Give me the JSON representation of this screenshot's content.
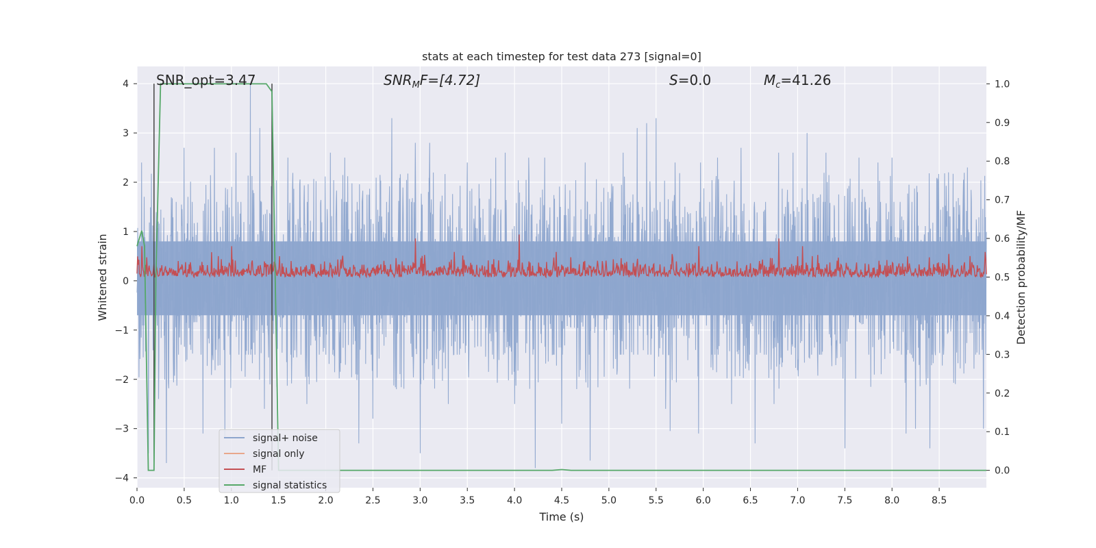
{
  "chart_data": {
    "type": "line",
    "title": "stats at each timestep for test data 273 [signal=0]",
    "xlabel": "Time (s)",
    "ylabel_left": "Whitened strain",
    "ylabel_right": "Detection probability/MF",
    "xlim": [
      0.0,
      9.0
    ],
    "ylim_left": [
      -4.2,
      4.35
    ],
    "ylim_right": [
      -0.045,
      1.045
    ],
    "xticks": [
      "0.0",
      "0.5",
      "1.0",
      "1.5",
      "2.0",
      "2.5",
      "3.0",
      "3.5",
      "4.0",
      "4.5",
      "5.0",
      "5.5",
      "6.0",
      "6.5",
      "7.0",
      "7.5",
      "8.0",
      "8.5"
    ],
    "yticks_left": [
      "−4",
      "−3",
      "−2",
      "−1",
      "0",
      "1",
      "2",
      "3",
      "4"
    ],
    "yticks_right": [
      "0.0",
      "0.1",
      "0.2",
      "0.3",
      "0.4",
      "0.5",
      "0.6",
      "0.7",
      "0.8",
      "0.9",
      "1.0"
    ],
    "grid": true,
    "legend_position": "lower-left",
    "annotations": {
      "snr_opt": "SNR_opt=3.47",
      "snr_mf_main": "SNR",
      "snr_mf_sub": "M",
      "snr_mf_rest": "F=[4.72]",
      "s_main": "S",
      "s_rest": "=0.0",
      "mc_main": "M",
      "mc_sub": "c",
      "mc_rest": "=41.26"
    },
    "vertical_lines_x": [
      0.18,
      1.43
    ],
    "series": [
      {
        "name": "signal+ noise",
        "color": "#8da5cd",
        "axis": "left",
        "description_values": {
          "typical_envelope": [
            -1.5,
            1.6
          ],
          "extreme_max": 4.0,
          "extreme_min": -3.85
        },
        "spikes": [
          [
            0.05,
            2.4
          ],
          [
            0.12,
            -3.5
          ],
          [
            0.23,
            -2.4
          ],
          [
            0.31,
            -3.7
          ],
          [
            0.5,
            2.7
          ],
          [
            0.7,
            -3.1
          ],
          [
            0.82,
            2.7
          ],
          [
            0.93,
            -3.2
          ],
          [
            1.05,
            2.6
          ],
          [
            1.2,
            4.0
          ],
          [
            1.3,
            3.1
          ],
          [
            1.35,
            -2.6
          ],
          [
            1.6,
            2.5
          ],
          [
            1.8,
            -2.5
          ],
          [
            2.05,
            2.6
          ],
          [
            2.2,
            2.5
          ],
          [
            2.35,
            -3.3
          ],
          [
            2.5,
            -2.8
          ],
          [
            2.7,
            3.3
          ],
          [
            2.75,
            -2.2
          ],
          [
            2.95,
            2.8
          ],
          [
            3.0,
            -3.5
          ],
          [
            3.1,
            2.8
          ],
          [
            3.3,
            -2.5
          ],
          [
            3.5,
            2.4
          ],
          [
            3.8,
            2.5
          ],
          [
            3.9,
            2.6
          ],
          [
            4.0,
            -2.5
          ],
          [
            4.15,
            2.5
          ],
          [
            4.22,
            -3.8
          ],
          [
            4.32,
            2.5
          ],
          [
            4.5,
            -2.9
          ],
          [
            4.75,
            2.4
          ],
          [
            4.8,
            -3.65
          ],
          [
            5.15,
            2.6
          ],
          [
            5.3,
            3.1
          ],
          [
            5.4,
            3.2
          ],
          [
            5.5,
            3.3
          ],
          [
            5.6,
            -2.6
          ],
          [
            5.65,
            -3.05
          ],
          [
            5.7,
            2.4
          ],
          [
            5.95,
            -3.1
          ],
          [
            5.97,
            2.4
          ],
          [
            6.15,
            2.5
          ],
          [
            6.3,
            -2.5
          ],
          [
            6.4,
            2.7
          ],
          [
            6.55,
            -3.3
          ],
          [
            6.75,
            -2.5
          ],
          [
            6.8,
            2.6
          ],
          [
            6.95,
            2.6
          ],
          [
            7.1,
            3.0
          ],
          [
            7.3,
            2.6
          ],
          [
            7.5,
            -3.4
          ],
          [
            7.65,
            2.5
          ],
          [
            7.85,
            2.4
          ],
          [
            8.0,
            2.5
          ],
          [
            8.15,
            -3.1
          ],
          [
            8.25,
            -3.0
          ],
          [
            8.4,
            -3.4
          ],
          [
            8.6,
            2.2
          ],
          [
            8.8,
            2.3
          ],
          [
            8.97,
            -3.0
          ]
        ]
      },
      {
        "name": "signal only",
        "color": "#e8a78b",
        "axis": "left",
        "values_note": "flat"
      },
      {
        "name": "MF",
        "color": "#c44e52",
        "axis": "right",
        "typical_range": [
          0.5,
          0.55
        ],
        "peaks": [
          [
            0.05,
            0.58
          ],
          [
            1.0,
            0.58
          ],
          [
            2.95,
            0.6
          ],
          [
            4.05,
            0.61
          ],
          [
            5.95,
            0.58
          ],
          [
            6.8,
            0.6
          ],
          [
            7.05,
            0.58
          ],
          [
            8.6,
            0.56
          ]
        ]
      },
      {
        "name": "signal statistics",
        "color": "#55a868",
        "axis": "right",
        "x": [
          0.0,
          0.05,
          0.08,
          0.12,
          0.18,
          0.2,
          0.25,
          0.4,
          0.8,
          1.2,
          1.37,
          1.43,
          1.5,
          1.52,
          2.0,
          4.4,
          4.5,
          4.6,
          5.0,
          9.0
        ],
        "y": [
          0.58,
          0.62,
          0.58,
          0.0,
          0.0,
          0.5,
          1.0,
          1.0,
          1.0,
          1.0,
          1.0,
          0.98,
          0.0,
          0.0,
          0.0,
          0.0,
          0.002,
          0.0,
          0.0,
          0.0
        ]
      }
    ]
  }
}
